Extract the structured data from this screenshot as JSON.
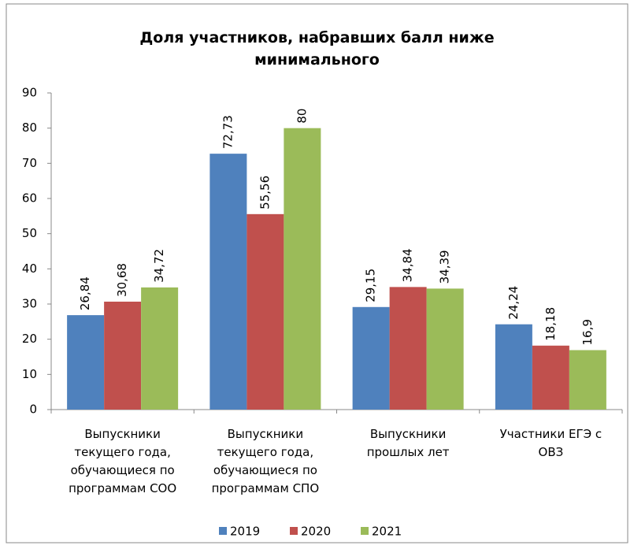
{
  "chart_data": {
    "type": "bar",
    "title": "Доля участников, набравших балл ниже\nминимального",
    "categories": [
      "Выпускники\nтекущего года,\nобучающиеся по\nпрограммам СОО",
      "Выпускники\nтекущего года,\nобучающиеся по\nпрограммам СПО",
      "Выпускники\nпрошлых лет",
      "Участники ЕГЭ с\nОВЗ"
    ],
    "series": [
      {
        "name": "2019",
        "color": "#4f81bd",
        "values": [
          26.84,
          72.73,
          29.15,
          24.24
        ],
        "value_labels": [
          "26,84",
          "72,73",
          "29,15",
          "24,24"
        ]
      },
      {
        "name": "2020",
        "color": "#c0504d",
        "values": [
          30.68,
          55.56,
          34.84,
          18.18
        ],
        "value_labels": [
          "30,68",
          "55,56",
          "34,84",
          "18,18"
        ]
      },
      {
        "name": "2021",
        "color": "#9bbb59",
        "values": [
          34.72,
          80,
          34.39,
          16.9
        ],
        "value_labels": [
          "34,72",
          "80",
          "34,39",
          "16,9"
        ]
      }
    ],
    "ylim": [
      0,
      90
    ],
    "yticks": [
      0,
      10,
      20,
      30,
      40,
      50,
      60,
      70,
      80,
      90
    ],
    "grid": false,
    "legend": "bottom"
  }
}
